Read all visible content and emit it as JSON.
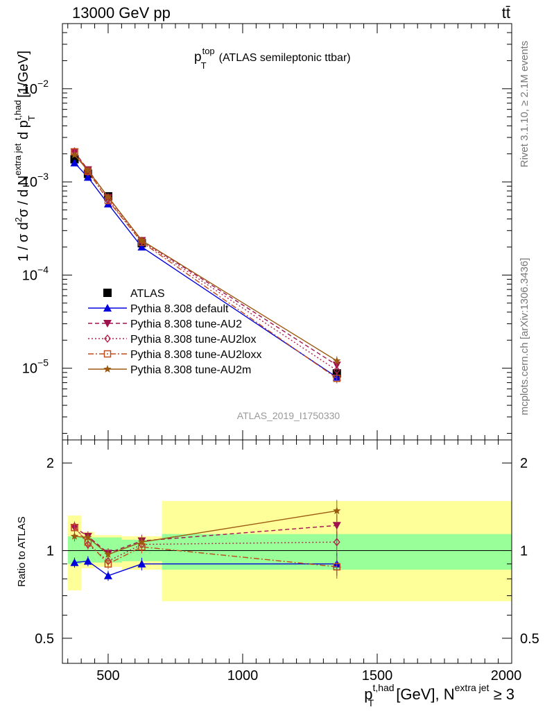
{
  "header": {
    "left": "13000 GeV pp",
    "right": "tt̄"
  },
  "side_labels": {
    "rivet": "Rivet 3.1.10, ≥ 2.1M events",
    "mcplots": "mcplots.cern.ch [arXiv:1306.3436]"
  },
  "analysis_id": "ATLAS_2019_I1750330",
  "chart_data": [
    {
      "type": "line",
      "panel": "main",
      "title": "p_T^top (ATLAS semileptonic ttbar)",
      "title_main": "p",
      "title_sup": "top",
      "title_sub": "T",
      "title_rest": "(ATLAS semileptonic ttbar)",
      "ylabel": "1 / σ d²σ / d N^{extra jet} d p_T^{t,had} [1/GeV]",
      "ylabel_parts": {
        "a": "1 / σ d",
        "a_sup": "2",
        "b": "σ  /  d N",
        "b_sup": "extra jet",
        "c": " d p",
        "c_sup": "t,had",
        "c_sub": "T",
        "d": " [1/GeV]"
      },
      "y_scale": "log",
      "xlim": [
        330,
        2000
      ],
      "ylim": [
        1.7e-06,
        0.05
      ],
      "y_ticks": [
        {
          "value": 1e-05,
          "label": "10",
          "sup": "−5"
        },
        {
          "value": 0.0001,
          "label": "10",
          "sup": "−4"
        },
        {
          "value": 0.001,
          "label": "10",
          "sup": "−3"
        },
        {
          "value": 0.01,
          "label": "10",
          "sup": "−2"
        }
      ],
      "legend_position": "bottom-left",
      "series": [
        {
          "name": "ATLAS",
          "color": "#000000",
          "marker": "square",
          "line": "none",
          "x": [
            375,
            425,
            500,
            625,
            1350
          ],
          "y": [
            0.00175,
            0.00122,
            0.0007,
            0.00022,
            8.8e-06
          ]
        },
        {
          "name": "Pythia 8.308 default",
          "color": "#0000dd",
          "marker": "triangle-up",
          "line": "solid",
          "x": [
            375,
            425,
            500,
            625,
            1350
          ],
          "y": [
            0.0016,
            0.00112,
            0.00058,
            0.0002,
            8e-06
          ]
        },
        {
          "name": "Pythia 8.308 tune-AU2",
          "color": "#a0104e",
          "marker": "triangle-down",
          "line": "dashed",
          "x": [
            375,
            425,
            500,
            625,
            1350
          ],
          "y": [
            0.0021,
            0.00135,
            0.00068,
            0.000235,
            1.08e-05
          ]
        },
        {
          "name": "Pythia 8.308 tune-AU2lox",
          "color": "#b0204a",
          "marker": "diamond-open",
          "line": "dotted",
          "x": [
            375,
            425,
            500,
            625,
            1350
          ],
          "y": [
            0.00212,
            0.00128,
            0.00064,
            0.00023,
            9.5e-06
          ]
        },
        {
          "name": "Pythia 8.308 tune-AU2loxx",
          "color": "#c04a1a",
          "marker": "square-open",
          "line": "dashdot",
          "x": [
            375,
            425,
            500,
            625,
            1350
          ],
          "y": [
            0.0021,
            0.0013,
            0.00063,
            0.000225,
            7.8e-06
          ]
        },
        {
          "name": "Pythia 8.308 tune-AU2m",
          "color": "#9b5a10",
          "marker": "star",
          "line": "solid",
          "x": [
            375,
            425,
            500,
            625,
            1350
          ],
          "y": [
            0.00195,
            0.00132,
            0.00069,
            0.000235,
            1.2e-05
          ]
        }
      ]
    },
    {
      "type": "line",
      "panel": "ratio",
      "ylabel": "Ratio to ATLAS",
      "xlabel": "p_T^{t,had} [GeV], N^{extra jet} ≥ 3",
      "xlabel_parts": {
        "a": "p",
        "a_sup": "t,had",
        "a_sub": "T",
        "b": " [GeV], N",
        "b_sup": "extra jet",
        "c": " ≥ 3"
      },
      "y_scale": "log",
      "xlim": [
        330,
        2000
      ],
      "ylim": [
        0.41,
        2.4
      ],
      "x_ticks": [
        {
          "value": 500,
          "label": "500"
        },
        {
          "value": 1000,
          "label": "1000"
        },
        {
          "value": 1500,
          "label": "1500"
        },
        {
          "value": 2000,
          "label": "2000"
        }
      ],
      "y_ticks": [
        {
          "value": 0.5,
          "label": "0.5"
        },
        {
          "value": 1,
          "label": "1"
        },
        {
          "value": 2,
          "label": "2"
        }
      ],
      "bands": [
        {
          "x": [
            350,
            400
          ],
          "stat": [
            0.9,
            1.12
          ],
          "total": [
            0.73,
            1.32
          ]
        },
        {
          "x": [
            400,
            450
          ],
          "stat": [
            0.91,
            1.11
          ],
          "total": [
            0.87,
            1.16
          ]
        },
        {
          "x": [
            450,
            550
          ],
          "stat": [
            0.91,
            1.11
          ],
          "total": [
            0.88,
            1.13
          ]
        },
        {
          "x": [
            550,
            700
          ],
          "stat": [
            0.92,
            1.09
          ],
          "total": [
            0.86,
            1.12
          ]
        },
        {
          "x": [
            700,
            2000
          ],
          "stat": [
            0.86,
            1.14
          ],
          "total": [
            0.67,
            1.48
          ]
        }
      ],
      "series": [
        {
          "name": "Pythia 8.308 default",
          "color": "#0000dd",
          "marker": "triangle-up",
          "line": "solid",
          "x": [
            375,
            425,
            500,
            625,
            1350
          ],
          "y": [
            0.91,
            0.92,
            0.82,
            0.9,
            0.9
          ]
        },
        {
          "name": "Pythia 8.308 tune-AU2",
          "color": "#a0104e",
          "marker": "triangle-down",
          "line": "dashed",
          "x": [
            375,
            425,
            500,
            625,
            1350
          ],
          "y": [
            1.2,
            1.12,
            0.98,
            1.08,
            1.22
          ]
        },
        {
          "name": "Pythia 8.308 tune-AU2lox",
          "color": "#b0204a",
          "marker": "diamond-open",
          "line": "dotted",
          "x": [
            375,
            425,
            500,
            625,
            1350
          ],
          "y": [
            1.21,
            1.05,
            0.92,
            1.05,
            1.07
          ]
        },
        {
          "name": "Pythia 8.308 tune-AU2loxx",
          "color": "#c04a1a",
          "marker": "square-open",
          "line": "dashdot",
          "x": [
            375,
            425,
            500,
            625,
            1350
          ],
          "y": [
            1.2,
            1.07,
            0.9,
            1.03,
            0.88
          ]
        },
        {
          "name": "Pythia 8.308 tune-AU2m",
          "color": "#9b5a10",
          "marker": "star",
          "line": "solid",
          "x": [
            375,
            425,
            500,
            625,
            1350
          ],
          "y": [
            1.12,
            1.11,
            0.97,
            1.07,
            1.37
          ]
        }
      ]
    }
  ]
}
